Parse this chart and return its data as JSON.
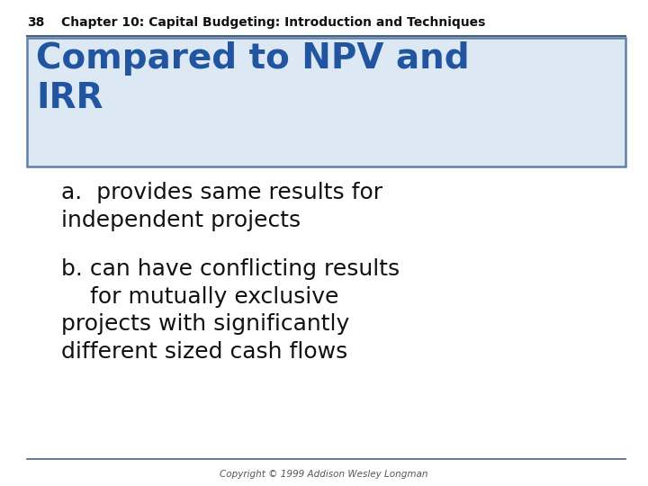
{
  "page_number": "38",
  "header_text": "Chapter 10: Capital Budgeting: Introduction and Techniques",
  "title_text": "Compared to NPV and\nIRR",
  "title_bg_color": "#dce9f5",
  "title_border_color": "#6080a8",
  "title_font_color": "#2255a0",
  "body_text_a": "a.  provides same results for\nindependent projects",
  "body_text_b": "b. can have conflicting results\n    for mutually exclusive\nprojects with significantly\ndifferent sized cash flows",
  "body_font_color": "#111111",
  "footer_text": "Copyright © 1999 Addison Wesley Longman",
  "bg_color": "#ffffff",
  "header_line_color": "#4a6080",
  "footer_line_color": "#4a6080"
}
